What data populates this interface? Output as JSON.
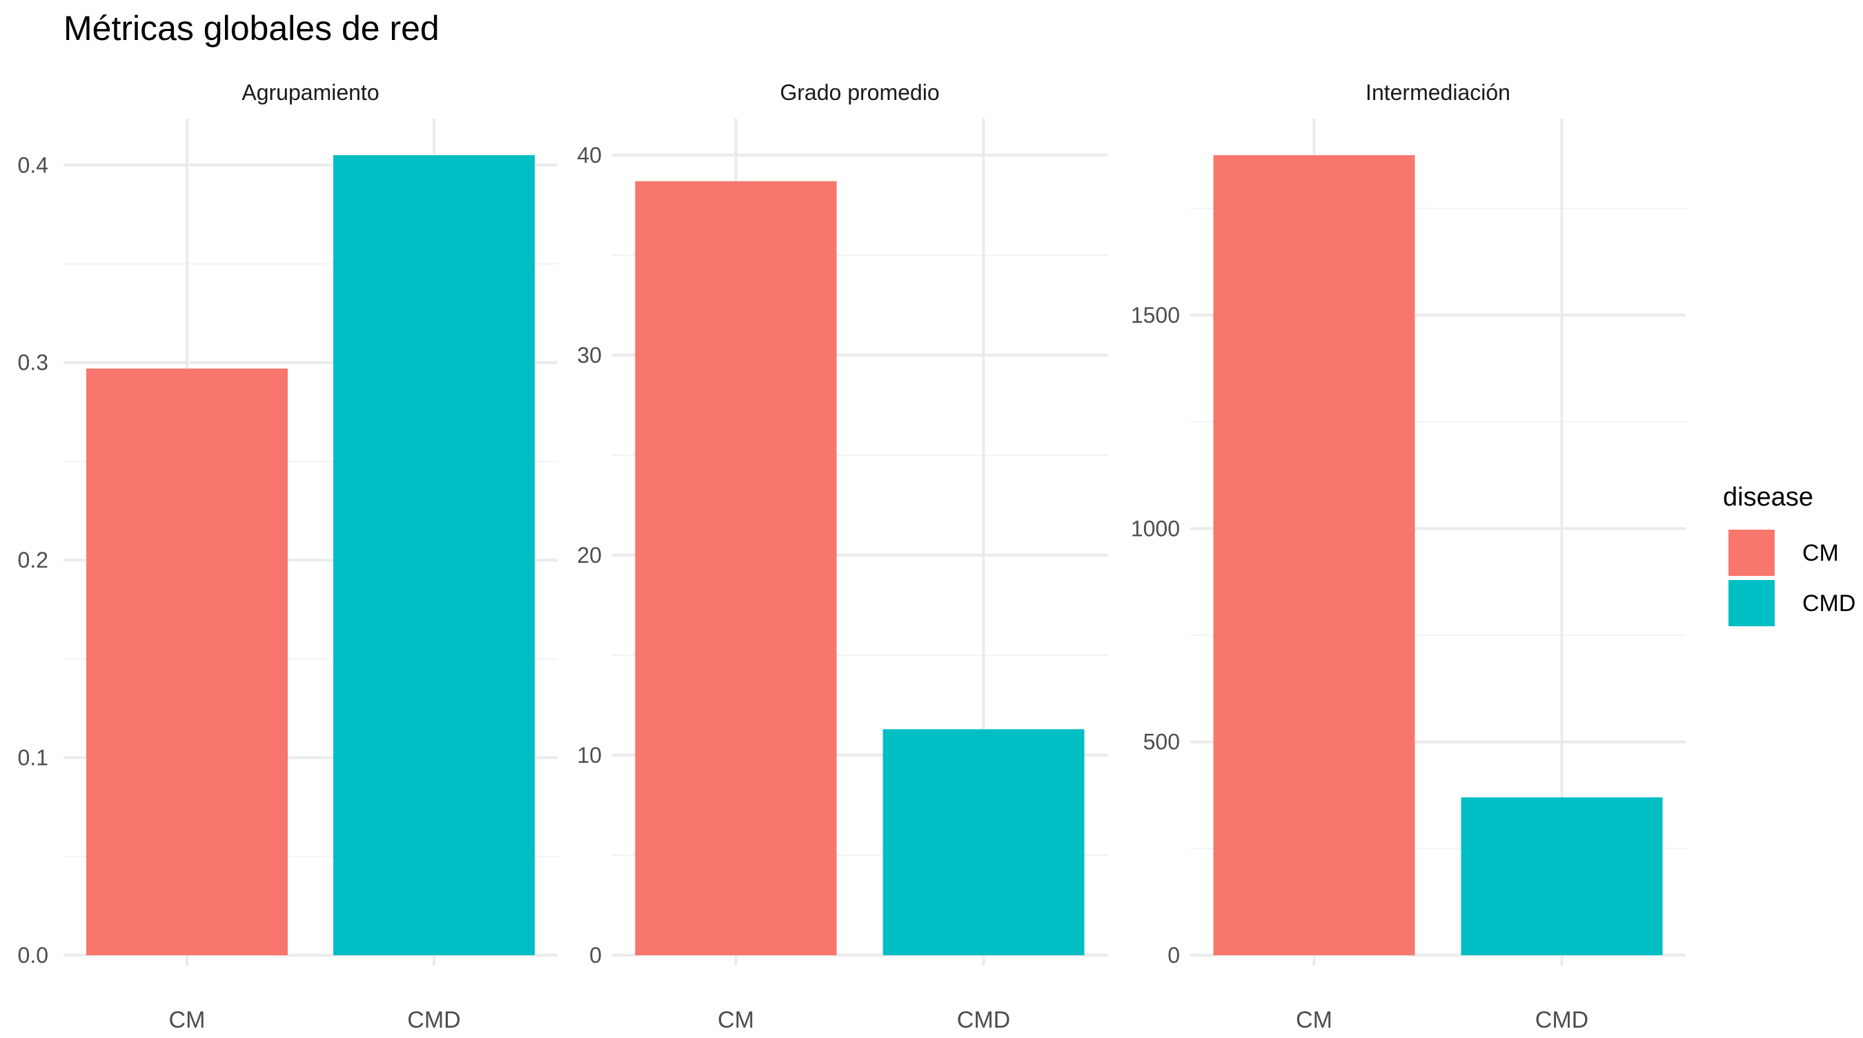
{
  "chart_data": {
    "type": "bar",
    "title": "Métricas globales de red",
    "categories": [
      "CM",
      "CMD"
    ],
    "legend": {
      "title": "disease",
      "placement": "right",
      "entries": [
        {
          "label": "CM",
          "color": "#F8766D"
        },
        {
          "label": "CMD",
          "color": "#00BFC4"
        }
      ]
    },
    "grid": true,
    "panels": [
      {
        "name": "Agrupamiento",
        "values": [
          0.297,
          0.405
        ],
        "ylim": [
          0,
          0.405
        ],
        "yticks": [
          0.0,
          0.1,
          0.2,
          0.3,
          0.4
        ],
        "ytick_labels": [
          "0.0",
          "0.1",
          "0.2",
          "0.3",
          "0.4"
        ]
      },
      {
        "name": "Grado promedio",
        "values": [
          38.7,
          11.3
        ],
        "ylim": [
          0,
          40
        ],
        "yticks": [
          0,
          10,
          20,
          30,
          40
        ],
        "ytick_labels": [
          "0",
          "10",
          "20",
          "30",
          "40"
        ]
      },
      {
        "name": "Intermediación",
        "values": [
          1875,
          370
        ],
        "ylim": [
          0,
          1875
        ],
        "yticks": [
          0,
          500,
          1000,
          1500
        ],
        "ytick_labels": [
          "0",
          "500",
          "1000",
          "1500"
        ]
      }
    ]
  }
}
